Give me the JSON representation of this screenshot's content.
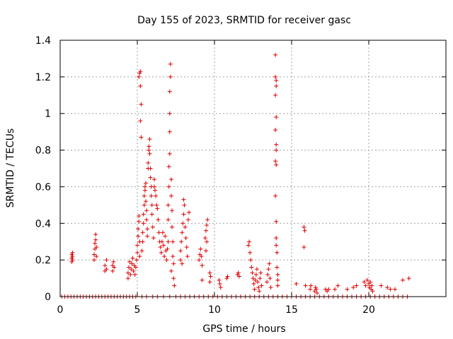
{
  "chart_data": {
    "type": "scatter",
    "title": "Day 155 of 2023, SRMTID for receiver gasc",
    "xlabel": "GPS time / hours",
    "ylabel": "SRMTID / TECUs",
    "xlim": [
      0,
      25
    ],
    "ylim": [
      0,
      1.4
    ],
    "xticks": [
      0,
      5,
      10,
      15,
      20
    ],
    "xtick_labels": [
      "0",
      "5",
      "10",
      "15",
      "20"
    ],
    "yticks": [
      0,
      0.2,
      0.4,
      0.6,
      0.8,
      1.0,
      1.2,
      1.4
    ],
    "ytick_labels": [
      "0",
      "0.2",
      "0.4",
      "0.6",
      "0.8",
      "1",
      "1.2",
      "1.4"
    ],
    "grid": true,
    "marker": "+",
    "marker_color": "#dd0000",
    "series": [
      {
        "name": "SRMTID",
        "points": [
          [
            0.1,
            0
          ],
          [
            0.3,
            0
          ],
          [
            0.5,
            0
          ],
          [
            0.7,
            0
          ],
          [
            0.9,
            0
          ],
          [
            1.1,
            0
          ],
          [
            1.3,
            0
          ],
          [
            1.5,
            0
          ],
          [
            1.7,
            0
          ],
          [
            1.9,
            0
          ],
          [
            2.1,
            0
          ],
          [
            2.3,
            0
          ],
          [
            2.5,
            0
          ],
          [
            2.7,
            0
          ],
          [
            2.9,
            0
          ],
          [
            3.1,
            0
          ],
          [
            3.3,
            0
          ],
          [
            3.5,
            0
          ],
          [
            3.7,
            0
          ],
          [
            3.9,
            0
          ],
          [
            4.1,
            0
          ],
          [
            4.3,
            0
          ],
          [
            4.5,
            0
          ],
          [
            4.7,
            0
          ],
          [
            4.9,
            0
          ],
          [
            5.3,
            0
          ],
          [
            5.6,
            0
          ],
          [
            6.0,
            0
          ],
          [
            6.3,
            0
          ],
          [
            6.7,
            0
          ],
          [
            7.1,
            0
          ],
          [
            7.5,
            0
          ],
          [
            7.8,
            0
          ],
          [
            8.1,
            0
          ],
          [
            8.4,
            0
          ],
          [
            8.7,
            0
          ],
          [
            9.0,
            0
          ],
          [
            9.3,
            0
          ],
          [
            9.6,
            0
          ],
          [
            9.9,
            0
          ],
          [
            10.2,
            0
          ],
          [
            10.5,
            0
          ],
          [
            10.8,
            0
          ],
          [
            11.1,
            0
          ],
          [
            11.4,
            0
          ],
          [
            11.7,
            0
          ],
          [
            12.0,
            0
          ],
          [
            12.3,
            0
          ],
          [
            12.6,
            0
          ],
          [
            12.9,
            0
          ],
          [
            13.2,
            0
          ],
          [
            13.5,
            0
          ],
          [
            13.8,
            0
          ],
          [
            14.1,
            0
          ],
          [
            14.4,
            0
          ],
          [
            14.7,
            0
          ],
          [
            15.0,
            0
          ],
          [
            15.3,
            0
          ],
          [
            15.6,
            0
          ],
          [
            15.9,
            0
          ],
          [
            16.2,
            0
          ],
          [
            16.5,
            0
          ],
          [
            16.8,
            0
          ],
          [
            17.1,
            0
          ],
          [
            17.4,
            0
          ],
          [
            17.7,
            0
          ],
          [
            18.0,
            0
          ],
          [
            18.3,
            0
          ],
          [
            18.6,
            0
          ],
          [
            18.9,
            0
          ],
          [
            19.2,
            0
          ],
          [
            19.5,
            0
          ],
          [
            19.8,
            0
          ],
          [
            20.1,
            0
          ],
          [
            20.4,
            0
          ],
          [
            20.7,
            0
          ],
          [
            21.0,
            0
          ],
          [
            21.3,
            0
          ],
          [
            21.6,
            0
          ],
          [
            21.9,
            0
          ],
          [
            22.2,
            0
          ],
          [
            22.5,
            0
          ],
          [
            0.75,
            0.19
          ],
          [
            0.75,
            0.21
          ],
          [
            0.75,
            0.23
          ],
          [
            0.8,
            0.2
          ],
          [
            0.8,
            0.22
          ],
          [
            0.8,
            0.24
          ],
          [
            2.2,
            0.2
          ],
          [
            2.2,
            0.23
          ],
          [
            2.25,
            0.26
          ],
          [
            2.25,
            0.29
          ],
          [
            2.3,
            0.31
          ],
          [
            2.3,
            0.34
          ],
          [
            2.35,
            0.27
          ],
          [
            2.35,
            0.22
          ],
          [
            2.9,
            0.14
          ],
          [
            2.9,
            0.17
          ],
          [
            3.0,
            0.2
          ],
          [
            3.0,
            0.15
          ],
          [
            3.4,
            0.14
          ],
          [
            3.4,
            0.17
          ],
          [
            3.45,
            0.19
          ],
          [
            3.5,
            0.16
          ],
          [
            4.4,
            0.1
          ],
          [
            4.4,
            0.13
          ],
          [
            4.45,
            0.16
          ],
          [
            4.5,
            0.19
          ],
          [
            4.55,
            0.12
          ],
          [
            4.6,
            0.15
          ],
          [
            4.65,
            0.18
          ],
          [
            4.7,
            0.21
          ],
          [
            4.75,
            0.14
          ],
          [
            4.8,
            0.17
          ],
          [
            4.85,
            0.12
          ],
          [
            4.9,
            0.16
          ],
          [
            4.95,
            0.2
          ],
          [
            5.0,
            0.24
          ],
          [
            5.0,
            0.28
          ],
          [
            5.05,
            0.33
          ],
          [
            5.05,
            0.37
          ],
          [
            5.1,
            0.41
          ],
          [
            5.1,
            0.44
          ],
          [
            5.15,
            0.3
          ],
          [
            5.15,
            0.22
          ],
          [
            5.1,
            1.2
          ],
          [
            5.15,
            1.22
          ],
          [
            5.2,
            1.23
          ],
          [
            5.2,
            1.15
          ],
          [
            5.25,
            1.05
          ],
          [
            5.2,
            0.96
          ],
          [
            5.25,
            0.87
          ],
          [
            5.3,
            0.25
          ],
          [
            5.35,
            0.3
          ],
          [
            5.35,
            0.35
          ],
          [
            5.4,
            0.4
          ],
          [
            5.4,
            0.45
          ],
          [
            5.45,
            0.5
          ],
          [
            5.45,
            0.55
          ],
          [
            5.5,
            0.6
          ],
          [
            5.55,
            0.62
          ],
          [
            5.5,
            0.58
          ],
          [
            5.55,
            0.52
          ],
          [
            5.6,
            0.47
          ],
          [
            5.6,
            0.42
          ],
          [
            5.65,
            0.37
          ],
          [
            5.65,
            0.33
          ],
          [
            5.7,
            0.7
          ],
          [
            5.7,
            0.73
          ],
          [
            5.75,
            0.8
          ],
          [
            5.75,
            0.82
          ],
          [
            5.8,
            0.78
          ],
          [
            5.8,
            0.86
          ],
          [
            5.85,
            0.7
          ],
          [
            5.85,
            0.65
          ],
          [
            5.9,
            0.6
          ],
          [
            5.9,
            0.55
          ],
          [
            5.95,
            0.5
          ],
          [
            5.95,
            0.45
          ],
          [
            6.0,
            0.38
          ],
          [
            6.05,
            0.32
          ],
          [
            6.1,
            0.64
          ],
          [
            6.1,
            0.6
          ],
          [
            6.15,
            0.58
          ],
          [
            6.2,
            0.55
          ],
          [
            6.25,
            0.5
          ],
          [
            6.3,
            0.48
          ],
          [
            6.35,
            0.42
          ],
          [
            6.4,
            0.35
          ],
          [
            6.45,
            0.3
          ],
          [
            6.5,
            0.27
          ],
          [
            6.55,
            0.24
          ],
          [
            6.6,
            0.3
          ],
          [
            6.65,
            0.35
          ],
          [
            6.7,
            0.28
          ],
          [
            6.75,
            0.22
          ],
          [
            6.8,
            0.33
          ],
          [
            6.85,
            0.25
          ],
          [
            6.9,
            0.2
          ],
          [
            6.95,
            0.26
          ],
          [
            7.0,
            0.3
          ],
          [
            7.0,
            0.42
          ],
          [
            7.0,
            0.5
          ],
          [
            7.05,
            0.6
          ],
          [
            7.05,
            0.71
          ],
          [
            7.1,
            0.78
          ],
          [
            7.1,
            0.9
          ],
          [
            7.1,
            1.0
          ],
          [
            7.1,
            1.12
          ],
          [
            7.15,
            1.2
          ],
          [
            7.15,
            1.27
          ],
          [
            7.2,
            0.64
          ],
          [
            7.2,
            0.55
          ],
          [
            7.25,
            0.47
          ],
          [
            7.25,
            0.38
          ],
          [
            7.3,
            0.3
          ],
          [
            7.3,
            0.22
          ],
          [
            7.35,
            0.18
          ],
          [
            7.35,
            0.1
          ],
          [
            7.4,
            0.06
          ],
          [
            7.2,
            0.14
          ],
          [
            7.8,
            0.2
          ],
          [
            7.8,
            0.25
          ],
          [
            7.85,
            0.3
          ],
          [
            7.9,
            0.35
          ],
          [
            7.95,
            0.4
          ],
          [
            8.0,
            0.45
          ],
          [
            8.05,
            0.5
          ],
          [
            8.0,
            0.53
          ],
          [
            8.1,
            0.38
          ],
          [
            8.15,
            0.32
          ],
          [
            8.2,
            0.27
          ],
          [
            8.25,
            0.22
          ],
          [
            8.3,
            0.42
          ],
          [
            8.35,
            0.46
          ],
          [
            7.9,
            0.18
          ],
          [
            9.0,
            0.2
          ],
          [
            9.05,
            0.23
          ],
          [
            9.1,
            0.26
          ],
          [
            9.15,
            0.22
          ],
          [
            9.2,
            0.17
          ],
          [
            9.2,
            0.09
          ],
          [
            9.4,
            0.32
          ],
          [
            9.45,
            0.36
          ],
          [
            9.5,
            0.39
          ],
          [
            9.55,
            0.42
          ],
          [
            9.5,
            0.3
          ],
          [
            9.45,
            0.25
          ],
          [
            9.7,
            0.13
          ],
          [
            9.75,
            0.11
          ],
          [
            9.7,
            0.08
          ],
          [
            10.3,
            0.09
          ],
          [
            10.35,
            0.07
          ],
          [
            10.4,
            0.05
          ],
          [
            10.8,
            0.1
          ],
          [
            10.85,
            0.11
          ],
          [
            11.5,
            0.12
          ],
          [
            11.55,
            0.13
          ],
          [
            11.6,
            0.11
          ],
          [
            12.2,
            0.28
          ],
          [
            12.25,
            0.3
          ],
          [
            12.3,
            0.24
          ],
          [
            12.35,
            0.2
          ],
          [
            12.4,
            0.16
          ],
          [
            12.45,
            0.13
          ],
          [
            12.5,
            0.1
          ],
          [
            12.55,
            0.07
          ],
          [
            12.6,
            0.04
          ],
          [
            12.65,
            0.09
          ],
          [
            12.7,
            0.12
          ],
          [
            12.75,
            0.15
          ],
          [
            12.8,
            0.08
          ],
          [
            12.85,
            0.05
          ],
          [
            12.9,
            0.03
          ],
          [
            12.95,
            0.1
          ],
          [
            13.0,
            0.13
          ],
          [
            13.05,
            0.06
          ],
          [
            13.4,
            0.08
          ],
          [
            13.45,
            0.12
          ],
          [
            13.5,
            0.15
          ],
          [
            13.55,
            0.18
          ],
          [
            13.6,
            0.1
          ],
          [
            13.65,
            0.05
          ],
          [
            13.95,
            1.32
          ],
          [
            13.95,
            1.2
          ],
          [
            14.0,
            1.18
          ],
          [
            14.0,
            1.15
          ],
          [
            13.95,
            1.1
          ],
          [
            14.0,
            0.98
          ],
          [
            13.95,
            0.91
          ],
          [
            14.0,
            0.83
          ],
          [
            14.0,
            0.8
          ],
          [
            13.95,
            0.74
          ],
          [
            14.0,
            0.72
          ],
          [
            13.95,
            0.55
          ],
          [
            14.0,
            0.41
          ],
          [
            14.0,
            0.32
          ],
          [
            14.0,
            0.28
          ],
          [
            14.05,
            0.24
          ],
          [
            14.05,
            0.16
          ],
          [
            14.1,
            0.12
          ],
          [
            14.1,
            0.09
          ],
          [
            14.1,
            0.06
          ],
          [
            15.3,
            0.07
          ],
          [
            15.8,
            0.38
          ],
          [
            15.8,
            0.27
          ],
          [
            15.85,
            0.36
          ],
          [
            15.9,
            0.06
          ],
          [
            16.2,
            0.04
          ],
          [
            16.25,
            0.06
          ],
          [
            16.5,
            0.03
          ],
          [
            16.55,
            0.05
          ],
          [
            16.6,
            0.04
          ],
          [
            16.65,
            0.02
          ],
          [
            17.2,
            0.04
          ],
          [
            17.3,
            0.03
          ],
          [
            17.4,
            0.04
          ],
          [
            17.8,
            0.04
          ],
          [
            18.0,
            0.06
          ],
          [
            18.6,
            0.04
          ],
          [
            19.0,
            0.05
          ],
          [
            19.2,
            0.06
          ],
          [
            19.7,
            0.08
          ],
          [
            19.8,
            0.06
          ],
          [
            19.9,
            0.09
          ],
          [
            20.0,
            0.07
          ],
          [
            20.05,
            0.05
          ],
          [
            20.1,
            0.08
          ],
          [
            20.15,
            0.04
          ],
          [
            20.2,
            0.06
          ],
          [
            20.25,
            0.03
          ],
          [
            20.8,
            0.06
          ],
          [
            21.2,
            0.05
          ],
          [
            21.4,
            0.04
          ],
          [
            21.7,
            0.04
          ],
          [
            22.2,
            0.09
          ],
          [
            22.6,
            0.1
          ]
        ]
      }
    ]
  }
}
